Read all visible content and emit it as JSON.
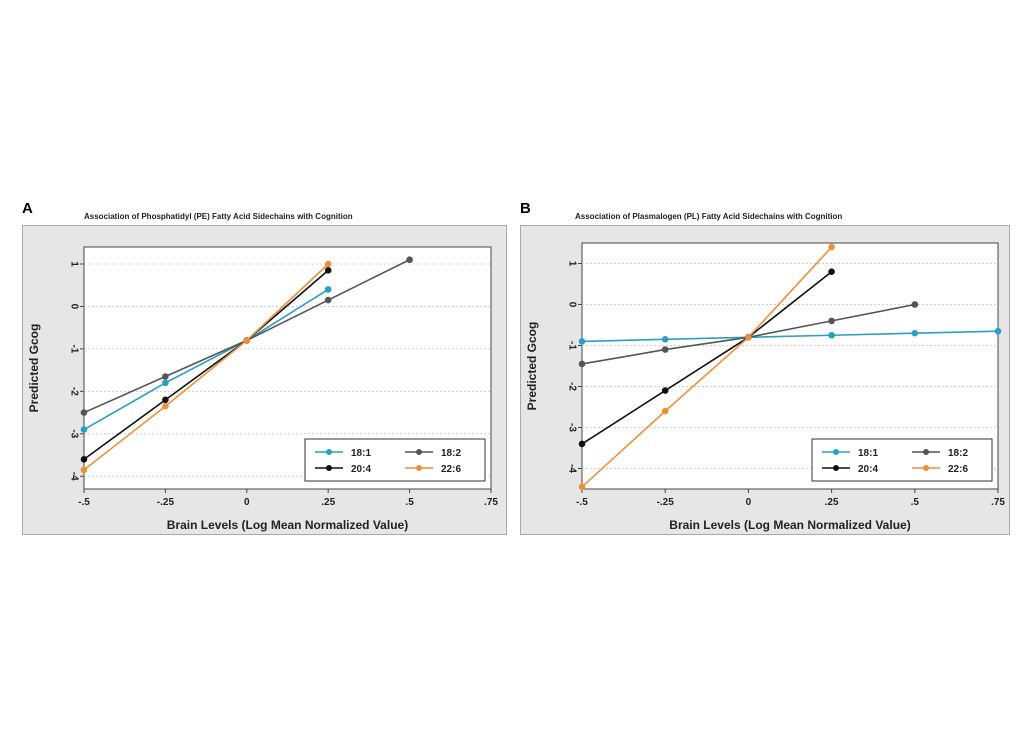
{
  "chart_data": [
    {
      "type": "line",
      "panel_label": "A",
      "title": "Association of Phosphatidyl (PE) Fatty Acid Sidechains with Cognition",
      "xlabel": "Brain Levels (Log Mean Normalized Value)",
      "ylabel": "Predicted Gcog",
      "xlim": [
        -0.5,
        0.75
      ],
      "ylim": [
        -4.3,
        1.4
      ],
      "x_ticks": [
        -0.5,
        -0.25,
        0,
        0.25,
        0.5,
        0.75
      ],
      "x_tick_labels": [
        "-.5",
        "-.25",
        "0",
        ".25",
        ".5",
        ".75"
      ],
      "y_ticks": [
        1,
        0,
        -1,
        -2,
        -3,
        -4
      ],
      "y_tick_labels": [
        "1",
        "0",
        "-1",
        "-2",
        "-3",
        "-4"
      ],
      "grid": true,
      "legend_position": "bottom-right",
      "series": [
        {
          "name": "18:1",
          "color": "#2a9fc4",
          "x": [
            -0.5,
            -0.25,
            0,
            0.25
          ],
          "y": [
            -2.9,
            -1.8,
            -0.8,
            0.4
          ]
        },
        {
          "name": "18:2",
          "color": "#555555",
          "x": [
            -0.5,
            -0.25,
            0,
            0.25,
            0.5
          ],
          "y": [
            -2.5,
            -1.65,
            -0.8,
            0.15,
            1.1
          ]
        },
        {
          "name": "20:4",
          "color": "#111111",
          "x": [
            -0.5,
            -0.25,
            0,
            0.25
          ],
          "y": [
            -3.6,
            -2.2,
            -0.8,
            0.85
          ]
        },
        {
          "name": "22:6",
          "color": "#e8913c",
          "x": [
            -0.5,
            -0.25,
            0,
            0.25
          ],
          "y": [
            -3.85,
            -2.35,
            -0.8,
            1.0
          ]
        }
      ]
    },
    {
      "type": "line",
      "panel_label": "B",
      "title": "Association of Plasmalogen (PL) Fatty Acid Sidechains with Cognition",
      "xlabel": "Brain Levels (Log Mean Normalized Value)",
      "ylabel": "Predicted Gcog",
      "xlim": [
        -0.5,
        0.75
      ],
      "ylim": [
        -4.5,
        1.5
      ],
      "x_ticks": [
        -0.5,
        -0.25,
        0,
        0.25,
        0.5,
        0.75
      ],
      "x_tick_labels": [
        "-.5",
        "-.25",
        "0",
        ".25",
        ".5",
        ".75"
      ],
      "y_ticks": [
        1,
        0,
        -1,
        -2,
        -3,
        -4
      ],
      "y_tick_labels": [
        "1",
        "0",
        "-1",
        "-2",
        "-3",
        "-4"
      ],
      "grid": true,
      "legend_position": "bottom-right",
      "series": [
        {
          "name": "18:1",
          "color": "#2a9fc4",
          "x": [
            -0.5,
            -0.25,
            0,
            0.25,
            0.5,
            0.75
          ],
          "y": [
            -0.9,
            -0.85,
            -0.8,
            -0.75,
            -0.7,
            -0.65
          ]
        },
        {
          "name": "18:2",
          "color": "#555555",
          "x": [
            -0.5,
            -0.25,
            0,
            0.25,
            0.5
          ],
          "y": [
            -1.45,
            -1.1,
            -0.8,
            -0.4,
            0.0
          ]
        },
        {
          "name": "20:4",
          "color": "#111111",
          "x": [
            -0.5,
            -0.25,
            0,
            0.25
          ],
          "y": [
            -3.4,
            -2.1,
            -0.8,
            0.8
          ]
        },
        {
          "name": "22:6",
          "color": "#e8913c",
          "x": [
            -0.5,
            -0.25,
            0,
            0.25
          ],
          "y": [
            -4.45,
            -2.6,
            -0.8,
            1.4
          ]
        }
      ]
    }
  ]
}
